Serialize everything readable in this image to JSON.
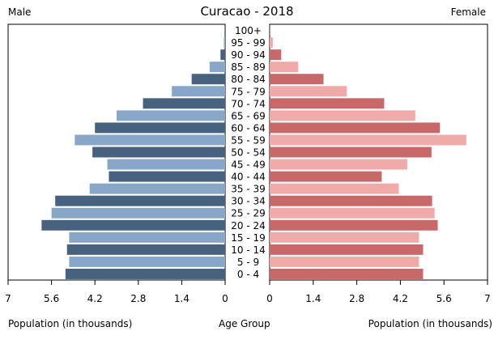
{
  "chart_data": {
    "type": "bar",
    "title": "Curacao - 2018",
    "left_header": "Male",
    "right_header": "Female",
    "xlabel_left": "Population (in thousands)",
    "xlabel_center": "Age Group",
    "xlabel_right": "Population (in thousands)",
    "categories": [
      "0 - 4",
      "5 - 9",
      "10 - 14",
      "15 - 19",
      "20 - 24",
      "25 - 29",
      "30 - 34",
      "35 - 39",
      "40 - 44",
      "45 - 49",
      "50 - 54",
      "55 - 59",
      "60 - 64",
      "65 - 69",
      "70 - 74",
      "75 - 79",
      "80 - 84",
      "85 - 89",
      "90 - 94",
      "95 - 99",
      "100+"
    ],
    "x_ticks": [
      "7",
      "5.6",
      "4.2",
      "2.8",
      "1.4",
      "0"
    ],
    "x_ticks_right": [
      "0",
      "1.4",
      "2.8",
      "4.2",
      "5.6",
      "7"
    ],
    "xlim": [
      0,
      7
    ],
    "series": [
      {
        "name": "Male",
        "values": [
          5.15,
          5.03,
          5.1,
          5.03,
          5.92,
          5.6,
          5.48,
          4.37,
          3.75,
          3.8,
          4.28,
          4.85,
          4.2,
          3.5,
          2.65,
          1.72,
          1.08,
          0.5,
          0.15,
          0.04,
          0.02
        ]
      },
      {
        "name": "Female",
        "values": [
          4.93,
          4.8,
          4.93,
          4.8,
          5.4,
          5.3,
          5.22,
          4.15,
          3.6,
          4.42,
          5.2,
          6.32,
          5.47,
          4.68,
          3.68,
          2.48,
          1.73,
          0.92,
          0.37,
          0.1,
          0.02
        ]
      }
    ],
    "colors": {
      "male_dark": "#46627f",
      "male_light": "#87a6c8",
      "female_dark": "#c96868",
      "female_light": "#f0aaaa"
    }
  }
}
